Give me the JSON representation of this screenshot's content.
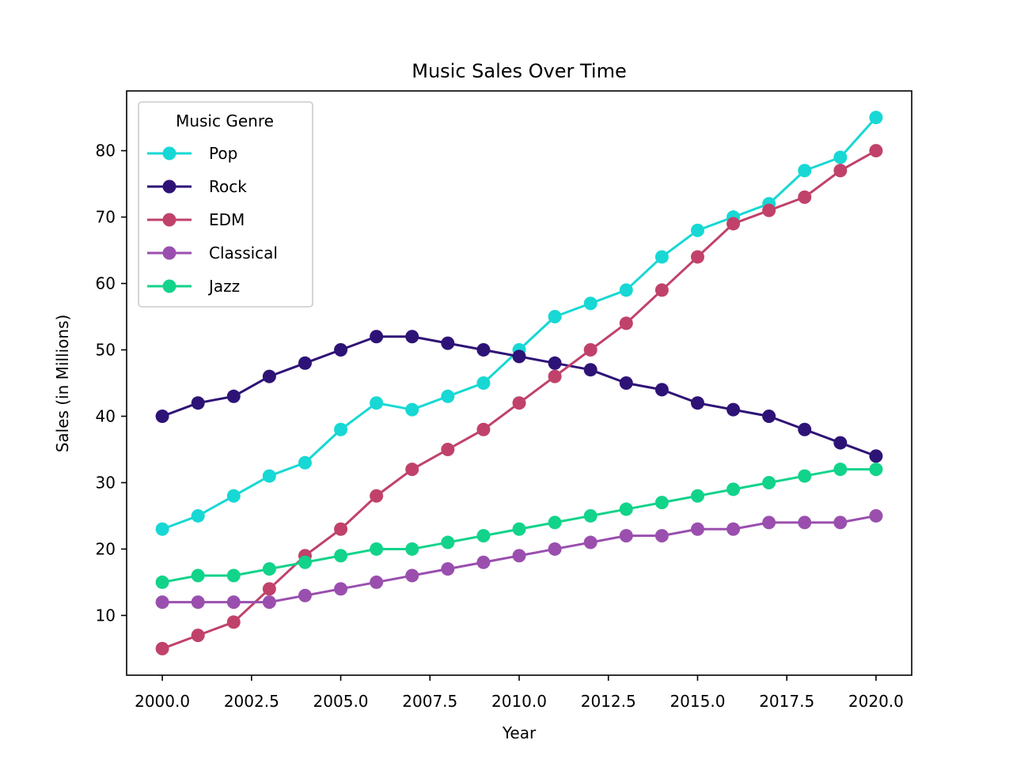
{
  "chart_data": {
    "type": "line",
    "title": "Music Sales Over Time",
    "xlabel": "Year",
    "ylabel": "Sales (in Millions)",
    "xlim": [
      1999.0,
      2021.0
    ],
    "ylim": [
      1.0,
      89.0
    ],
    "xticks": [
      2000.0,
      2002.5,
      2005.0,
      2007.5,
      2010.0,
      2012.5,
      2015.0,
      2017.5,
      2020.0
    ],
    "xtick_labels": [
      "2000.0",
      "2002.5",
      "2005.0",
      "2007.5",
      "2010.0",
      "2012.5",
      "2015.0",
      "2017.5",
      "2020.0"
    ],
    "yticks": [
      10,
      20,
      30,
      40,
      50,
      60,
      70,
      80
    ],
    "ytick_labels": [
      "10",
      "20",
      "30",
      "40",
      "50",
      "60",
      "70",
      "80"
    ],
    "grid": false,
    "legend": {
      "title": "Music Genre",
      "placement": "top-left"
    },
    "x": [
      2000,
      2001,
      2002,
      2003,
      2004,
      2005,
      2006,
      2007,
      2008,
      2009,
      2010,
      2011,
      2012,
      2013,
      2014,
      2015,
      2016,
      2017,
      2018,
      2019,
      2020
    ],
    "series": [
      {
        "name": "Pop",
        "color": "#17d8d4",
        "values": [
          23,
          25,
          28,
          31,
          33,
          38,
          42,
          41,
          43,
          45,
          50,
          55,
          57,
          59,
          64,
          68,
          70,
          72,
          77,
          79,
          85
        ]
      },
      {
        "name": "Rock",
        "color": "#2e1377",
        "values": [
          40,
          42,
          43,
          46,
          48,
          50,
          52,
          52,
          51,
          50,
          49,
          48,
          47,
          45,
          44,
          42,
          41,
          40,
          38,
          36,
          34
        ]
      },
      {
        "name": "EDM",
        "color": "#c0426a",
        "values": [
          5,
          7,
          9,
          14,
          19,
          23,
          28,
          32,
          35,
          38,
          42,
          46,
          50,
          54,
          59,
          64,
          69,
          71,
          73,
          77,
          80
        ]
      },
      {
        "name": "Classical",
        "color": "#9a4fae",
        "values": [
          12,
          12,
          12,
          12,
          13,
          14,
          15,
          16,
          17,
          18,
          19,
          20,
          21,
          22,
          22,
          23,
          23,
          24,
          24,
          24,
          25
        ]
      },
      {
        "name": "Jazz",
        "color": "#12d38a",
        "values": [
          15,
          16,
          16,
          17,
          18,
          19,
          20,
          20,
          21,
          22,
          23,
          24,
          25,
          26,
          27,
          28,
          29,
          30,
          31,
          32,
          32
        ]
      }
    ]
  }
}
